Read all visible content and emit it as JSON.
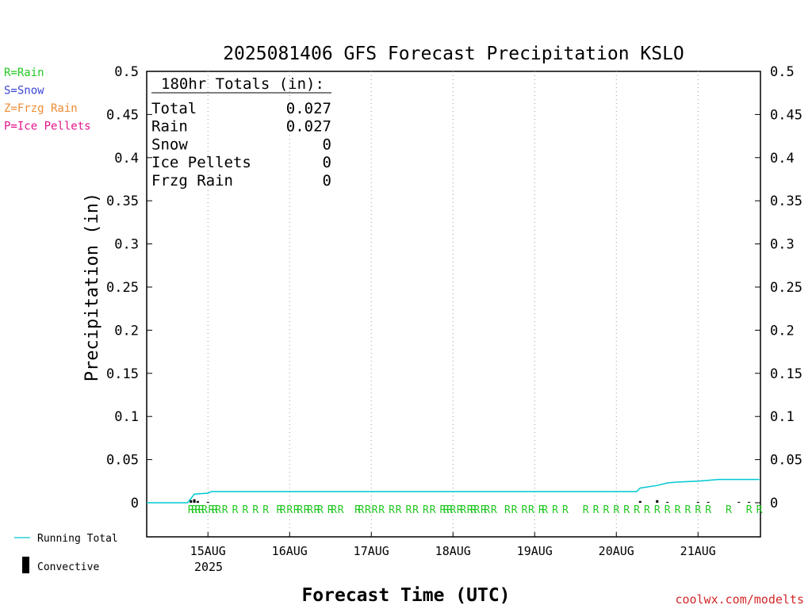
{
  "chart_data": {
    "type": "line",
    "title": "2025081406 GFS Forecast Precipitation KSLO",
    "xlabel": "Forecast Time (UTC)",
    "ylabel": "Precipitation (in)",
    "ylim": [
      0,
      0.5
    ],
    "xlim": [
      "2025-08-14 06:00",
      "2025-08-21 18:00"
    ],
    "yticks": [
      "0",
      "0.05",
      "0.1",
      "0.15",
      "0.2",
      "0.25",
      "0.3",
      "0.35",
      "0.4",
      "0.45",
      "0.5"
    ],
    "xticks": [
      {
        "label": "15AUG",
        "time": "2025-08-15 00:00"
      },
      {
        "label": "16AUG",
        "time": "2025-08-16 00:00"
      },
      {
        "label": "17AUG",
        "time": "2025-08-17 00:00"
      },
      {
        "label": "18AUG",
        "time": "2025-08-18 00:00"
      },
      {
        "label": "19AUG",
        "time": "2025-08-19 00:00"
      },
      {
        "label": "20AUG",
        "time": "2025-08-20 00:00"
      },
      {
        "label": "21AUG",
        "time": "2025-08-21 00:00"
      }
    ],
    "year_label": "2025",
    "grid": "vertical dotted at each day",
    "series": [
      {
        "name": "Running Total",
        "color": "#00c8d2",
        "points": [
          [
            "2025-08-14 06:00",
            0
          ],
          [
            "2025-08-14 18:00",
            0
          ],
          [
            "2025-08-14 19:00",
            0.005
          ],
          [
            "2025-08-14 20:00",
            0.01
          ],
          [
            "2025-08-15 00:00",
            0.011
          ],
          [
            "2025-08-15 01:00",
            0.013
          ],
          [
            "2025-08-20 06:00",
            0.013
          ],
          [
            "2025-08-20 07:00",
            0.017
          ],
          [
            "2025-08-20 12:00",
            0.02
          ],
          [
            "2025-08-20 15:00",
            0.023
          ],
          [
            "2025-08-20 18:00",
            0.024
          ],
          [
            "2025-08-21 00:00",
            0.025
          ],
          [
            "2025-08-21 03:00",
            0.026
          ],
          [
            "2025-08-21 06:00",
            0.027
          ],
          [
            "2025-08-21 18:00",
            0.027
          ]
        ]
      },
      {
        "name": "Convective",
        "color": "#000000",
        "type": "bar",
        "points": [
          [
            "2025-08-14 19:00",
            0.003
          ],
          [
            "2025-08-14 20:00",
            0.004
          ],
          [
            "2025-08-14 21:00",
            0.002
          ],
          [
            "2025-08-15 00:00",
            0.001
          ],
          [
            "2025-08-20 07:00",
            0.002
          ],
          [
            "2025-08-20 12:00",
            0.003
          ],
          [
            "2025-08-20 15:00",
            0.001
          ],
          [
            "2025-08-21 00:00",
            0.001
          ],
          [
            "2025-08-21 03:00",
            0.001
          ],
          [
            "2025-08-21 12:00",
            0.001
          ],
          [
            "2025-08-21 15:00",
            0.001
          ]
        ]
      }
    ],
    "rain_marker_times": [
      "2025-08-14 19:00",
      "2025-08-14 20:00",
      "2025-08-14 21:00",
      "2025-08-14 22:00",
      "2025-08-14 23:00",
      "2025-08-15 01:00",
      "2025-08-15 02:00",
      "2025-08-15 03:00",
      "2025-08-15 05:00",
      "2025-08-15 08:00",
      "2025-08-15 11:00",
      "2025-08-15 14:00",
      "2025-08-15 17:00",
      "2025-08-15 21:00",
      "2025-08-15 22:00",
      "2025-08-16 00:00",
      "2025-08-16 02:00",
      "2025-08-16 03:00",
      "2025-08-16 05:00",
      "2025-08-16 06:00",
      "2025-08-16 08:00",
      "2025-08-16 09:00",
      "2025-08-16 12:00",
      "2025-08-16 13:00",
      "2025-08-16 15:00",
      "2025-08-16 20:00",
      "2025-08-16 21:00",
      "2025-08-16 23:00",
      "2025-08-17 01:00",
      "2025-08-17 03:00",
      "2025-08-17 06:00",
      "2025-08-17 08:00",
      "2025-08-17 11:00",
      "2025-08-17 13:00",
      "2025-08-17 16:00",
      "2025-08-17 18:00",
      "2025-08-17 21:00",
      "2025-08-17 22:00",
      "2025-08-17 23:00",
      "2025-08-18 00:00",
      "2025-08-18 02:00",
      "2025-08-18 03:00",
      "2025-08-18 05:00",
      "2025-08-18 06:00",
      "2025-08-18 07:00",
      "2025-08-18 09:00",
      "2025-08-18 10:00",
      "2025-08-18 12:00",
      "2025-08-18 16:00",
      "2025-08-18 18:00",
      "2025-08-18 21:00",
      "2025-08-18 23:00",
      "2025-08-19 02:00",
      "2025-08-19 03:00",
      "2025-08-19 06:00",
      "2025-08-19 09:00",
      "2025-08-19 15:00",
      "2025-08-19 18:00",
      "2025-08-19 21:00",
      "2025-08-20 00:00",
      "2025-08-20 03:00",
      "2025-08-20 06:00",
      "2025-08-20 09:00",
      "2025-08-20 12:00",
      "2025-08-20 15:00",
      "2025-08-20 18:00",
      "2025-08-20 21:00",
      "2025-08-21 00:00",
      "2025-08-21 03:00",
      "2025-08-21 09:00",
      "2025-08-21 15:00",
      "2025-08-21 18:00"
    ],
    "rain_marker_text": "R",
    "totals_box": {
      "heading": "180hr Totals (in):",
      "rows": [
        {
          "label": "Total",
          "value": "0.027"
        },
        {
          "label": "Rain",
          "value": "0.027"
        },
        {
          "label": "Snow",
          "value": "0"
        },
        {
          "label": "Ice Pellets",
          "value": "0"
        },
        {
          "label": "Frzg Rain",
          "value": "0"
        }
      ]
    },
    "ptype_legend": [
      {
        "text": "R=Rain",
        "color": "#22c822"
      },
      {
        "text": "S=Snow",
        "color": "#3c46d2"
      },
      {
        "text": "Z=Frzg Rain",
        "color": "#f08c32"
      },
      {
        "text": "P=Ice Pellets",
        "color": "#e6148c"
      }
    ],
    "series_legend": [
      {
        "text": "Running Total",
        "color": "#00c8d2"
      },
      {
        "text": "Convective",
        "color": "#000000"
      }
    ],
    "credit": "coolwx.com/modelts",
    "credit_color": "#d22828"
  }
}
